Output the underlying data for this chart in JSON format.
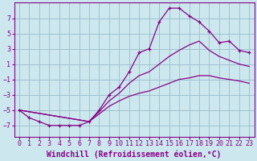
{
  "xlabel": "Windchill (Refroidissement éolien,°C)",
  "xlim": [
    -0.5,
    23.5
  ],
  "ylim": [
    -8.5,
    9.0
  ],
  "xticks": [
    0,
    1,
    2,
    3,
    4,
    5,
    6,
    7,
    8,
    9,
    10,
    11,
    12,
    13,
    14,
    15,
    16,
    17,
    18,
    19,
    20,
    21,
    22,
    23
  ],
  "yticks": [
    -7,
    -5,
    -3,
    -1,
    1,
    3,
    5,
    7
  ],
  "bg_color": "#cce8ee",
  "line_color": "#880088",
  "grid_color": "#99bbcc",
  "curve1_x": [
    0,
    1,
    2,
    3,
    4,
    5,
    6,
    7,
    8,
    9,
    10,
    11,
    12,
    13,
    14,
    15,
    16,
    17,
    18,
    19,
    20,
    21,
    22,
    23
  ],
  "curve1_y": [
    -5.0,
    -6.0,
    -6.5,
    -7.0,
    -7.0,
    -7.0,
    -7.0,
    -6.5,
    -5.0,
    -3.0,
    -2.0,
    0.0,
    2.5,
    3.0,
    6.5,
    8.3,
    8.3,
    7.3,
    6.5,
    5.3,
    3.8,
    4.0,
    2.8,
    2.5
  ],
  "line2_x": [
    0,
    7,
    8,
    9,
    10,
    11,
    12,
    13,
    14,
    15,
    16,
    17,
    18,
    19,
    20,
    21,
    22,
    23
  ],
  "line2_y": [
    -5.0,
    -6.5,
    -5.2,
    -3.8,
    -2.8,
    -1.5,
    -0.5,
    0.0,
    1.0,
    2.0,
    2.8,
    3.5,
    4.0,
    2.8,
    2.0,
    1.5,
    1.0,
    0.7
  ],
  "line3_x": [
    0,
    7,
    8,
    9,
    10,
    11,
    12,
    13,
    14,
    15,
    16,
    17,
    18,
    19,
    20,
    21,
    22,
    23
  ],
  "line3_y": [
    -5.0,
    -6.5,
    -5.5,
    -4.5,
    -3.8,
    -3.2,
    -2.8,
    -2.5,
    -2.0,
    -1.5,
    -1.0,
    -0.8,
    -0.5,
    -0.5,
    -0.8,
    -1.0,
    -1.2,
    -1.5
  ],
  "fontsize_label": 7,
  "fontsize_tick": 6
}
